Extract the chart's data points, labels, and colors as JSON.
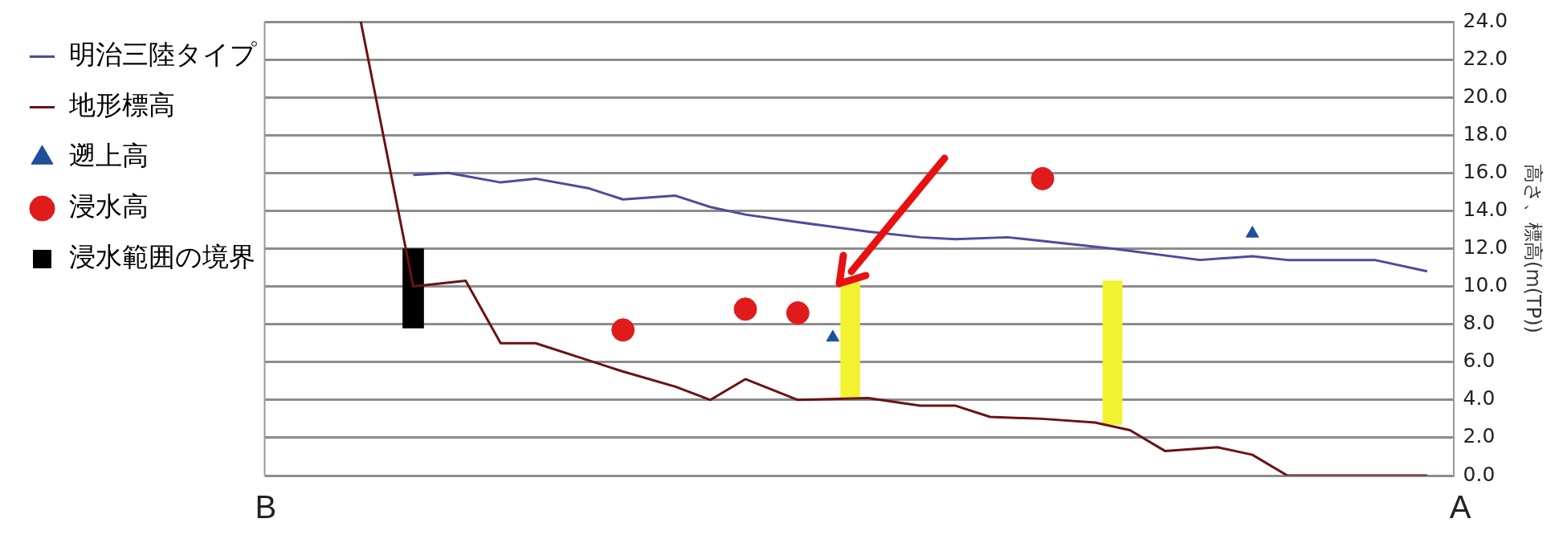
{
  "chart_data": {
    "type": "line",
    "ylabel": "高さ、標高(m(TP))",
    "categories": [
      null,
      null,
      null,
      null,
      null,
      null,
      null,
      null,
      null,
      null,
      null,
      null,
      null,
      null,
      null,
      null,
      null,
      null,
      null,
      null,
      null,
      null,
      null,
      null,
      null,
      null,
      null,
      null,
      null,
      null,
      null,
      null,
      null,
      null,
      null,
      null,
      null,
      null,
      null,
      null,
      null,
      null,
      null,
      null,
      null,
      null,
      null,
      null,
      null,
      null,
      null,
      null,
      null,
      null,
      null,
      null,
      null,
      null,
      null,
      null,
      null,
      null,
      null,
      null,
      null,
      null,
      null,
      null
    ],
    "ylim": [
      0,
      24
    ],
    "yticks": [
      {
        "value": 0,
        "label": "0.0"
      },
      {
        "value": 2,
        "label": "2.0"
      },
      {
        "value": 4,
        "label": "4.0"
      },
      {
        "value": 6,
        "label": "6.0"
      },
      {
        "value": 8,
        "label": "8.0"
      },
      {
        "value": 10,
        "label": "10.0"
      },
      {
        "value": 12,
        "label": "12.0"
      },
      {
        "value": 14,
        "label": "14.0"
      },
      {
        "value": 16,
        "label": "16.0"
      },
      {
        "value": 18,
        "label": "18.0"
      },
      {
        "value": 20,
        "label": "20.0"
      },
      {
        "value": 22,
        "label": "22.0"
      },
      {
        "value": 24,
        "label": "24.0"
      }
    ],
    "grid": "y",
    "legend": "left",
    "tick_labels": "y",
    "line_style": "solid",
    "annotations": [
      "B",
      "A"
    ],
    "series": [
      {
        "name": "明治三陸タイプ",
        "color": "#4b4b9e",
        "marker": "none",
        "values": [
          null,
          null,
          null,
          null,
          null,
          null,
          null,
          null,
          15.9,
          null,
          16.0,
          null,
          null,
          15.5,
          null,
          15.7,
          null,
          null,
          15.2,
          null,
          14.6,
          null,
          null,
          14.8,
          null,
          14.2,
          null,
          13.8,
          null,
          null,
          13.4,
          null,
          null,
          null,
          12.9,
          null,
          null,
          12.6,
          null,
          12.5,
          null,
          null,
          12.6,
          null,
          12.4,
          null,
          null,
          null,
          12.0,
          null,
          null,
          null,
          null,
          11.4,
          null,
          null,
          11.6,
          null,
          11.4,
          null,
          null,
          null,
          null,
          11.4,
          null,
          null,
          10.8,
          null
        ]
      },
      {
        "name": "地形標高",
        "color": "#6b1212",
        "marker": "none",
        "values": [
          null,
          null,
          null,
          null,
          null,
          24.0,
          null,
          null,
          10.0,
          null,
          null,
          10.3,
          null,
          7.0,
          null,
          7.0,
          null,
          null,
          6.1,
          null,
          5.5,
          null,
          null,
          4.7,
          null,
          4.0,
          null,
          5.1,
          null,
          null,
          4.0,
          null,
          null,
          null,
          4.1,
          null,
          null,
          3.7,
          null,
          3.7,
          null,
          3.1,
          null,
          null,
          3.0,
          null,
          null,
          2.8,
          null,
          2.4,
          null,
          1.3,
          null,
          null,
          1.5,
          null,
          1.1,
          null,
          0.0,
          null,
          null,
          null,
          null,
          null,
          null,
          null,
          0.0,
          null
        ]
      },
      {
        "type": "scatter",
        "name": "遡上高",
        "color": "#1f4e9a",
        "marker": "triangle",
        "values": [
          null,
          null,
          null,
          null,
          null,
          null,
          null,
          null,
          null,
          null,
          null,
          null,
          null,
          null,
          null,
          null,
          null,
          null,
          null,
          null,
          null,
          null,
          null,
          null,
          null,
          null,
          null,
          null,
          null,
          null,
          null,
          null,
          7.3,
          null,
          null,
          null,
          null,
          null,
          null,
          null,
          null,
          null,
          null,
          null,
          null,
          null,
          null,
          null,
          null,
          null,
          null,
          null,
          null,
          null,
          null,
          null,
          12.8,
          null,
          null,
          null,
          null,
          null,
          null,
          null,
          null,
          null,
          null,
          null
        ]
      },
      {
        "type": "scatter",
        "name": "浸水高",
        "color": "#e01b1b",
        "marker": "circle",
        "values": [
          null,
          null,
          null,
          null,
          null,
          null,
          null,
          null,
          null,
          null,
          null,
          null,
          null,
          null,
          null,
          null,
          null,
          null,
          null,
          null,
          7.7,
          null,
          null,
          null,
          null,
          null,
          null,
          8.8,
          null,
          null,
          8.6,
          null,
          null,
          null,
          null,
          null,
          null,
          null,
          null,
          null,
          null,
          null,
          null,
          null,
          15.7,
          null,
          null,
          null,
          null,
          null,
          null,
          null,
          null,
          null,
          null,
          null,
          null,
          null,
          null,
          null,
          null,
          null,
          null,
          null,
          null,
          null,
          null,
          null
        ]
      },
      {
        "type": "bar",
        "name": "浸水範囲の境界",
        "color": "#000000",
        "marker": "square",
        "values": [
          null,
          null,
          null,
          null,
          null,
          null,
          null,
          null,
          4.2,
          null,
          null,
          null,
          null,
          null,
          null,
          null,
          null,
          null,
          null,
          null,
          null,
          null,
          null,
          null,
          null,
          null,
          null,
          null,
          null,
          null,
          null,
          null,
          null,
          null,
          null,
          null,
          null,
          null,
          null,
          null,
          null,
          null,
          null,
          null,
          null,
          null,
          null,
          null,
          null,
          null,
          null,
          null,
          null,
          null,
          null,
          null,
          null,
          null,
          null,
          null,
          null,
          null,
          null,
          null,
          null,
          null,
          null,
          null
        ],
        "base": [
          null,
          null,
          null,
          null,
          null,
          null,
          null,
          null,
          7.8,
          null,
          null,
          null,
          null,
          null,
          null,
          null,
          null,
          null,
          null,
          null,
          null,
          null,
          null,
          null,
          null,
          null,
          null,
          null,
          null,
          null,
          null,
          null,
          null,
          null,
          null,
          null,
          null,
          null,
          null,
          null,
          null,
          null,
          null,
          null,
          null,
          null,
          null,
          null,
          null,
          null,
          null,
          null,
          null,
          null,
          null,
          null,
          null,
          null,
          null,
          null,
          null,
          null,
          null,
          null,
          null,
          null,
          null,
          null
        ]
      },
      {
        "type": "bar",
        "color": "#f2f230",
        "values": [
          null,
          null,
          null,
          null,
          null,
          null,
          null,
          null,
          null,
          null,
          null,
          null,
          null,
          null,
          null,
          null,
          null,
          null,
          null,
          null,
          null,
          null,
          null,
          null,
          null,
          null,
          null,
          null,
          null,
          null,
          null,
          null,
          null,
          6.1,
          null,
          null,
          null,
          null,
          null,
          null,
          null,
          null,
          null,
          null,
          null,
          null,
          null,
          null,
          7.6,
          null,
          null,
          null,
          null,
          null,
          null,
          null,
          null,
          null,
          null,
          null,
          null,
          null,
          null,
          null,
          null,
          null,
          null,
          null
        ],
        "base": [
          null,
          null,
          null,
          null,
          null,
          null,
          null,
          null,
          null,
          null,
          null,
          null,
          null,
          null,
          null,
          null,
          null,
          null,
          null,
          null,
          null,
          null,
          null,
          null,
          null,
          null,
          null,
          null,
          null,
          null,
          null,
          null,
          null,
          4.1,
          null,
          null,
          null,
          null,
          null,
          null,
          null,
          null,
          null,
          null,
          null,
          null,
          null,
          null,
          2.7,
          null,
          null,
          null,
          null,
          null,
          null,
          null,
          null,
          null,
          null,
          null,
          null,
          null,
          null,
          null,
          null,
          null,
          null,
          null
        ]
      }
    ]
  }
}
